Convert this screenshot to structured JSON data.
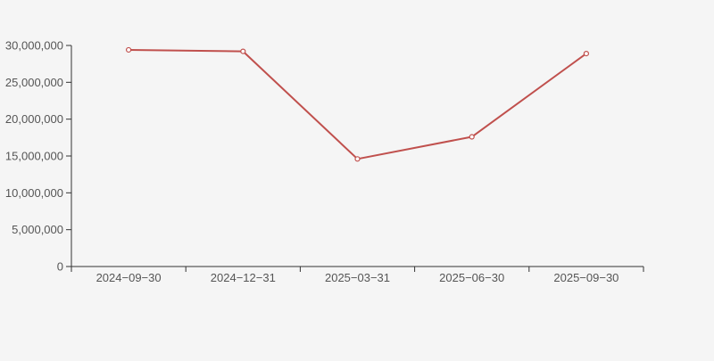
{
  "background_color": "#f5f5f5",
  "chart_data": {
    "type": "line",
    "title": "",
    "categories": [
      "2024−09−30",
      "2024−12−31",
      "2025−03−31",
      "2025−06−30",
      "2025−09−30"
    ],
    "series": [
      {
        "name": "series-1",
        "values": [
          29400000,
          29200000,
          14600000,
          17600000,
          28900000
        ]
      }
    ],
    "xlabel": "",
    "ylabel": "",
    "ylim": [
      0,
      30000000
    ],
    "y_tick_values": [
      0,
      5000000,
      10000000,
      15000000,
      20000000,
      25000000,
      30000000
    ],
    "y_tick_labels": [
      "0",
      "5,000,000",
      "10,000,000",
      "15,000,000",
      "20,000,000",
      "25,000,000",
      "30,000,000"
    ],
    "grid": false,
    "legend_position": "none",
    "line_color": "#c0504d",
    "marker_style": "hollow-circle",
    "marker_fill": "#ffffff",
    "axis_color": "#333333",
    "label_color": "#555555"
  }
}
